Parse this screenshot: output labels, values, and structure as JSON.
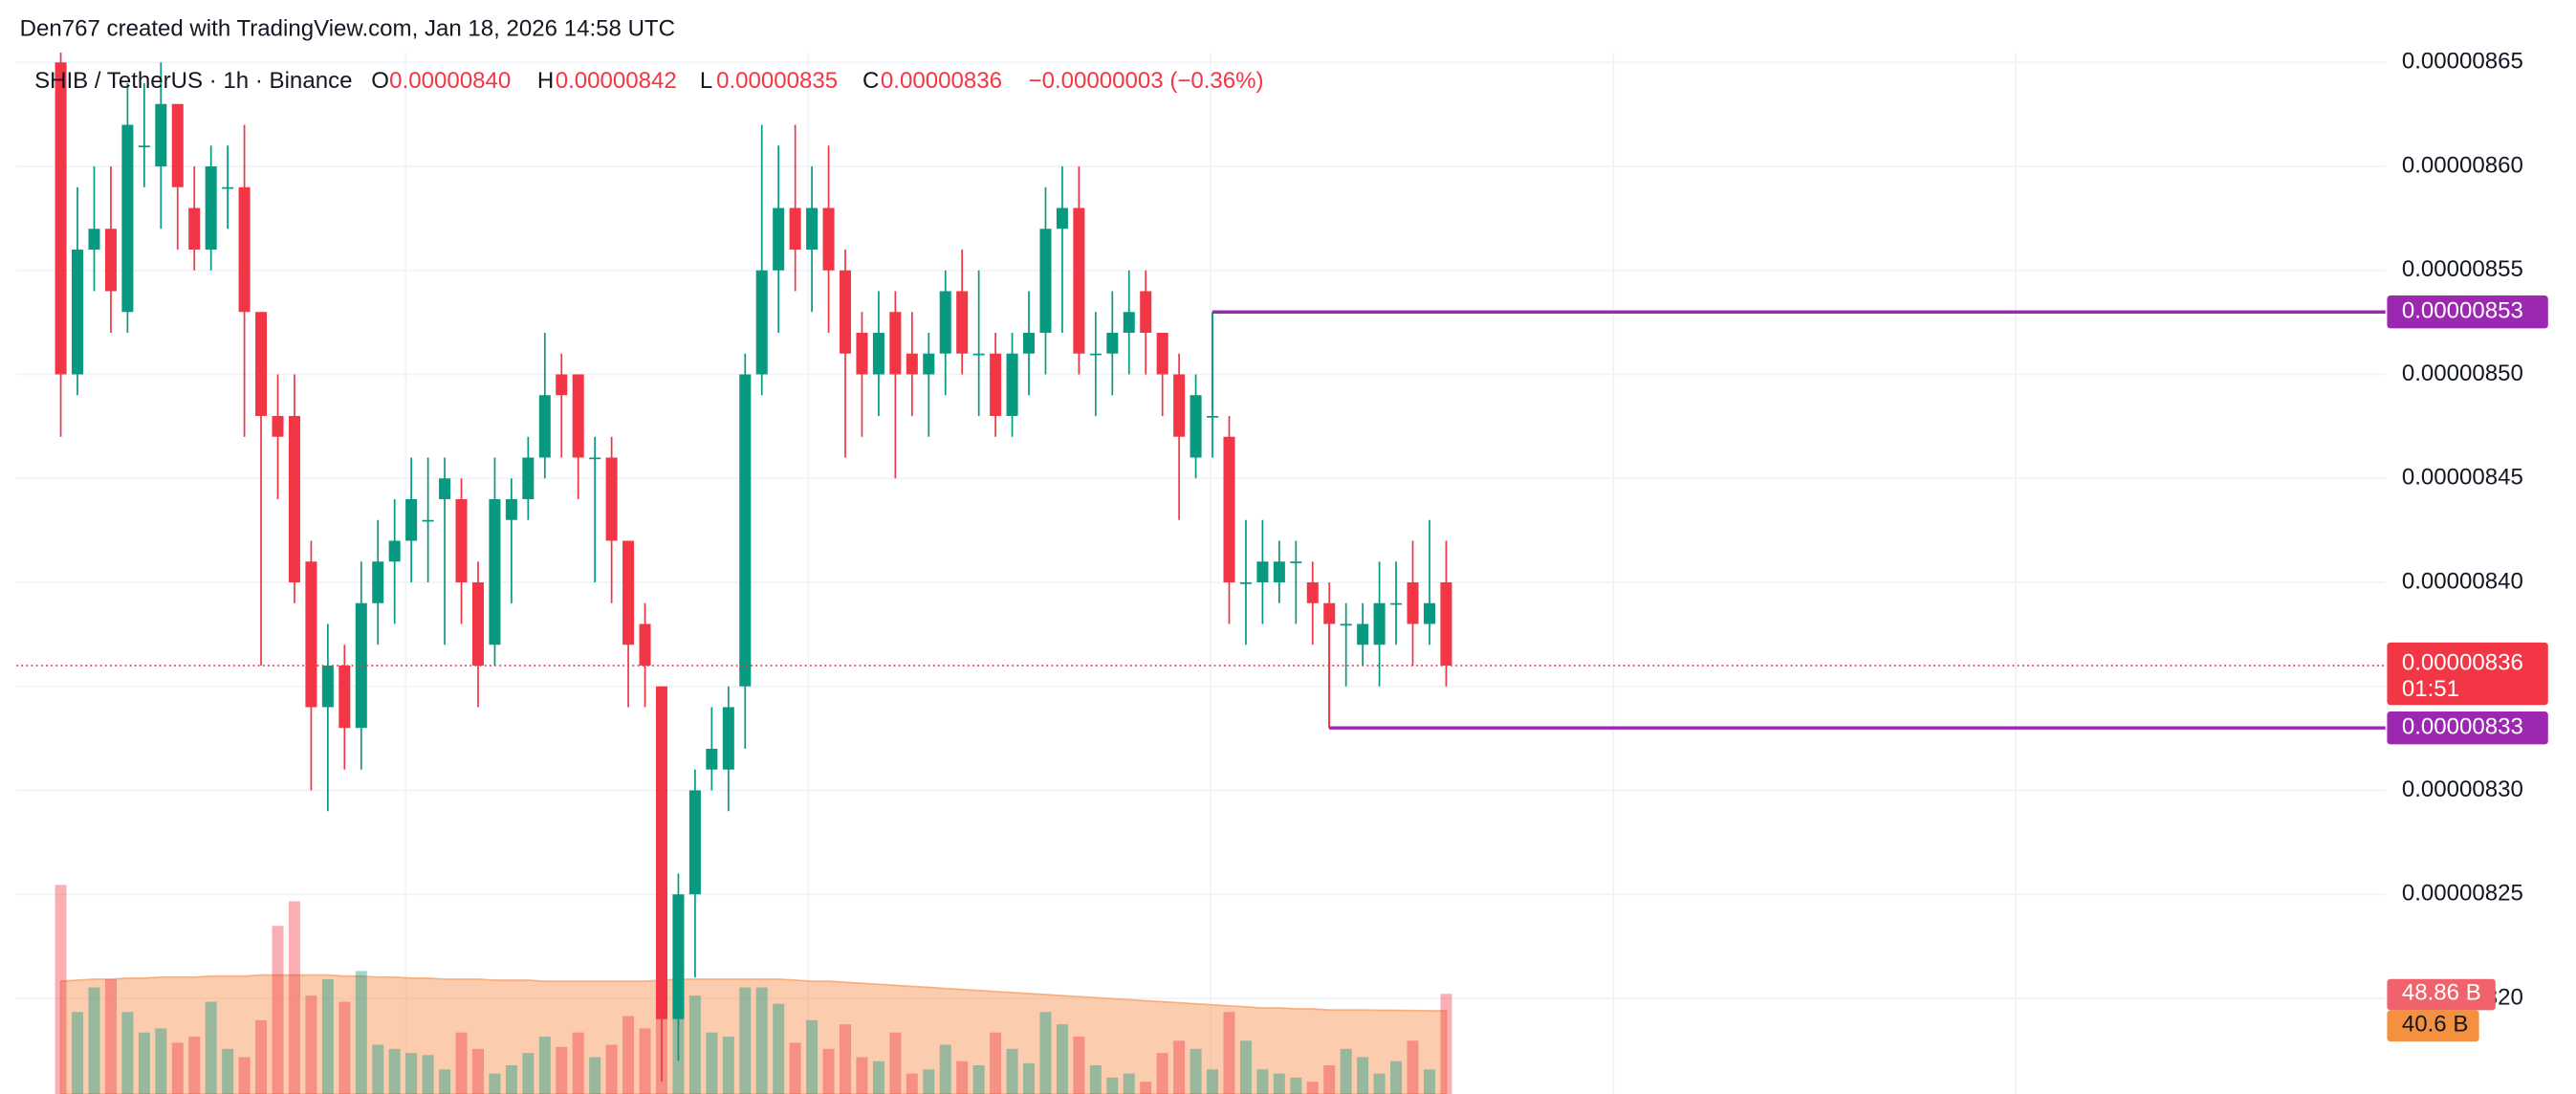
{
  "chart_data": {
    "type": "candlestick",
    "title": "Den767 created with TradingView.com, Jan 18, 2026 14:58 UTC",
    "symbol": "SHIB / TetherUS · 1h · Binance",
    "legend": {
      "open_label": "O",
      "open": "0.00000840",
      "high_label": "H",
      "high": "0.00000842",
      "low_label": "L",
      "low": "0.00000835",
      "close_label": "C",
      "close": "0.00000836",
      "change": "−0.00000003 (−0.36%)"
    },
    "open": [
      8.65e-06,
      8.5e-06,
      8.56e-06,
      8.57e-06,
      8.53e-06,
      8.61e-06,
      8.6e-06,
      8.63e-06,
      8.58e-06,
      8.56e-06,
      8.59e-06,
      8.59e-06,
      8.53e-06,
      8.48e-06,
      8.48e-06,
      8.41e-06,
      8.34e-06,
      8.36e-06,
      8.33e-06,
      8.39e-06,
      8.41e-06,
      8.42e-06,
      8.43e-06,
      8.44e-06,
      8.44e-06,
      8.4e-06,
      8.37e-06,
      8.43e-06,
      8.44e-06,
      8.46e-06,
      8.5e-06,
      8.5e-06,
      8.46e-06,
      8.46e-06,
      8.42e-06,
      8.38e-06,
      8.35e-06,
      8.19e-06,
      8.25e-06,
      8.31e-06,
      8.31e-06,
      8.35e-06,
      8.5e-06,
      8.55e-06,
      8.58e-06,
      8.56e-06,
      8.58e-06,
      8.55e-06,
      8.52e-06,
      8.5e-06,
      8.53e-06,
      8.51e-06,
      8.5e-06,
      8.51e-06,
      8.54e-06,
      8.51e-06,
      8.51e-06,
      8.48e-06,
      8.51e-06,
      8.52e-06,
      8.57e-06,
      8.58e-06,
      8.51e-06,
      8.51e-06,
      8.52e-06,
      8.54e-06,
      8.52e-06,
      8.5e-06,
      8.46e-06,
      8.48e-06,
      8.47e-06,
      8.4e-06,
      8.4e-06,
      8.4e-06,
      8.41e-06,
      8.4e-06,
      8.39e-06,
      8.38e-06,
      8.37e-06,
      8.37e-06,
      8.39e-06,
      8.4e-06,
      8.38e-06,
      8.4e-06
    ],
    "high": [
      8.67e-06,
      8.59e-06,
      8.6e-06,
      8.6e-06,
      8.64e-06,
      8.64e-06,
      8.65e-06,
      8.63e-06,
      8.6e-06,
      8.61e-06,
      8.61e-06,
      8.62e-06,
      8.53e-06,
      8.5e-06,
      8.5e-06,
      8.42e-06,
      8.38e-06,
      8.37e-06,
      8.41e-06,
      8.43e-06,
      8.44e-06,
      8.46e-06,
      8.46e-06,
      8.46e-06,
      8.45e-06,
      8.41e-06,
      8.46e-06,
      8.45e-06,
      8.47e-06,
      8.52e-06,
      8.51e-06,
      8.5e-06,
      8.47e-06,
      8.47e-06,
      8.42e-06,
      8.39e-06,
      8.35e-06,
      8.26e-06,
      8.31e-06,
      8.34e-06,
      8.35e-06,
      8.51e-06,
      8.62e-06,
      8.61e-06,
      8.62e-06,
      8.6e-06,
      8.61e-06,
      8.56e-06,
      8.53e-06,
      8.54e-06,
      8.54e-06,
      8.53e-06,
      8.52e-06,
      8.55e-06,
      8.56e-06,
      8.55e-06,
      8.52e-06,
      8.52e-06,
      8.54e-06,
      8.59e-06,
      8.6e-06,
      8.6e-06,
      8.53e-06,
      8.54e-06,
      8.55e-06,
      8.55e-06,
      8.52e-06,
      8.51e-06,
      8.5e-06,
      8.53e-06,
      8.48e-06,
      8.43e-06,
      8.43e-06,
      8.42e-06,
      8.42e-06,
      8.41e-06,
      8.4e-06,
      8.39e-06,
      8.39e-06,
      8.41e-06,
      8.41e-06,
      8.42e-06,
      8.43e-06,
      8.42e-06
    ],
    "low": [
      8.47e-06,
      8.49e-06,
      8.54e-06,
      8.52e-06,
      8.52e-06,
      8.59e-06,
      8.57e-06,
      8.56e-06,
      8.55e-06,
      8.55e-06,
      8.57e-06,
      8.47e-06,
      8.36e-06,
      8.44e-06,
      8.39e-06,
      8.3e-06,
      8.29e-06,
      8.31e-06,
      8.31e-06,
      8.37e-06,
      8.38e-06,
      8.4e-06,
      8.4e-06,
      8.37e-06,
      8.38e-06,
      8.34e-06,
      8.36e-06,
      8.39e-06,
      8.43e-06,
      8.45e-06,
      8.46e-06,
      8.44e-06,
      8.4e-06,
      8.39e-06,
      8.34e-06,
      8.34e-06,
      8.16e-06,
      8.17e-06,
      8.21e-06,
      8.3e-06,
      8.29e-06,
      8.32e-06,
      8.49e-06,
      8.52e-06,
      8.54e-06,
      8.53e-06,
      8.52e-06,
      8.46e-06,
      8.47e-06,
      8.48e-06,
      8.45e-06,
      8.48e-06,
      8.47e-06,
      8.49e-06,
      8.5e-06,
      8.48e-06,
      8.47e-06,
      8.47e-06,
      8.49e-06,
      8.5e-06,
      8.52e-06,
      8.5e-06,
      8.48e-06,
      8.49e-06,
      8.5e-06,
      8.5e-06,
      8.48e-06,
      8.43e-06,
      8.45e-06,
      8.46e-06,
      8.38e-06,
      8.37e-06,
      8.38e-06,
      8.39e-06,
      8.38e-06,
      8.37e-06,
      8.33e-06,
      8.35e-06,
      8.36e-06,
      8.35e-06,
      8.37e-06,
      8.36e-06,
      8.37e-06,
      8.35e-06
    ],
    "close": [
      8.5e-06,
      8.56e-06,
      8.57e-06,
      8.54e-06,
      8.62e-06,
      8.61e-06,
      8.63e-06,
      8.59e-06,
      8.56e-06,
      8.6e-06,
      8.59e-06,
      8.53e-06,
      8.48e-06,
      8.47e-06,
      8.4e-06,
      8.34e-06,
      8.36e-06,
      8.33e-06,
      8.39e-06,
      8.41e-06,
      8.42e-06,
      8.44e-06,
      8.43e-06,
      8.45e-06,
      8.4e-06,
      8.36e-06,
      8.44e-06,
      8.44e-06,
      8.46e-06,
      8.49e-06,
      8.49e-06,
      8.46e-06,
      8.46e-06,
      8.42e-06,
      8.37e-06,
      8.36e-06,
      8.19e-06,
      8.25e-06,
      8.3e-06,
      8.32e-06,
      8.34e-06,
      8.5e-06,
      8.55e-06,
      8.58e-06,
      8.56e-06,
      8.58e-06,
      8.55e-06,
      8.51e-06,
      8.5e-06,
      8.52e-06,
      8.5e-06,
      8.5e-06,
      8.51e-06,
      8.54e-06,
      8.51e-06,
      8.51e-06,
      8.48e-06,
      8.51e-06,
      8.52e-06,
      8.57e-06,
      8.58e-06,
      8.51e-06,
      8.51e-06,
      8.52e-06,
      8.53e-06,
      8.52e-06,
      8.5e-06,
      8.47e-06,
      8.49e-06,
      8.48e-06,
      8.4e-06,
      8.4e-06,
      8.41e-06,
      8.41e-06,
      8.41e-06,
      8.39e-06,
      8.38e-06,
      8.38e-06,
      8.38e-06,
      8.39e-06,
      8.39e-06,
      8.38e-06,
      8.39e-06,
      8.36e-06
    ],
    "up_color": "#089981",
    "down_color": "#f23645",
    "ylim": [
      8.154e-06,
      8.68e-06
    ],
    "yticks": [
      {
        "value": 8.65e-06,
        "label": "0.00000865"
      },
      {
        "value": 8.6e-06,
        "label": "0.00000860"
      },
      {
        "value": 8.55e-06,
        "label": "0.00000855"
      },
      {
        "value": 8.5e-06,
        "label": "0.00000850"
      },
      {
        "value": 8.45e-06,
        "label": "0.00000845"
      },
      {
        "value": 8.4e-06,
        "label": "0.00000840"
      },
      {
        "value": 8.35e-06,
        "label": "0.00000835"
      },
      {
        "value": 8.3e-06,
        "label": "0.00000830"
      },
      {
        "value": 8.25e-06,
        "label": "0.00000825"
      },
      {
        "value": 8.2e-06,
        "label": "0.00000820"
      }
    ],
    "grid": true,
    "last_price": {
      "value": 8.36e-06,
      "countdown": "01:51"
    },
    "levels": [
      {
        "value": 8.53e-06,
        "color": "#9c27b0"
      },
      {
        "value": 8.33e-06,
        "color": "#9c27b0"
      }
    ],
    "volume": {
      "values": [
        102,
        40,
        52,
        56,
        40,
        30,
        32,
        25,
        28,
        45,
        22,
        18,
        36,
        82,
        94,
        48,
        56,
        45,
        60,
        24,
        22,
        20,
        19,
        12,
        30,
        22,
        10,
        14,
        20,
        28,
        23,
        30,
        18,
        24,
        38,
        32,
        52,
        60,
        48,
        30,
        28,
        52,
        52,
        44,
        25,
        36,
        22,
        34,
        18,
        16,
        30,
        10,
        12,
        24,
        16,
        14,
        30,
        22,
        15,
        40,
        34,
        28,
        14,
        8,
        10,
        6,
        20,
        26,
        22,
        12,
        40,
        26,
        12,
        10,
        8,
        6,
        14,
        22,
        18,
        10,
        16,
        26,
        12,
        48.86
      ],
      "last_label": "48.86 B"
    },
    "volume_ma": {
      "values": [
        55,
        55.5,
        56,
        56,
        56.5,
        56.5,
        57,
        57,
        57,
        57.5,
        57.5,
        57.5,
        58,
        58,
        58,
        58,
        58,
        57.5,
        57.5,
        57,
        57,
        56.5,
        56.5,
        56,
        56,
        56,
        55.5,
        55.5,
        55.5,
        55,
        55,
        55,
        55,
        55,
        55,
        55,
        55.5,
        56,
        56,
        56,
        56,
        56,
        56,
        56,
        55.5,
        55,
        55,
        54.5,
        54,
        53.5,
        53,
        52.5,
        52,
        51.5,
        51,
        50.5,
        50,
        49.5,
        49,
        48.5,
        48,
        47.5,
        47,
        46.5,
        46,
        45.5,
        45,
        44.5,
        44,
        43.5,
        43,
        42.5,
        42,
        42,
        41.5,
        41.5,
        41,
        41,
        41,
        40.8,
        40.8,
        40.7,
        40.6,
        40.6
      ],
      "last_label": "40.6 B",
      "color": "#f7a26b"
    }
  }
}
